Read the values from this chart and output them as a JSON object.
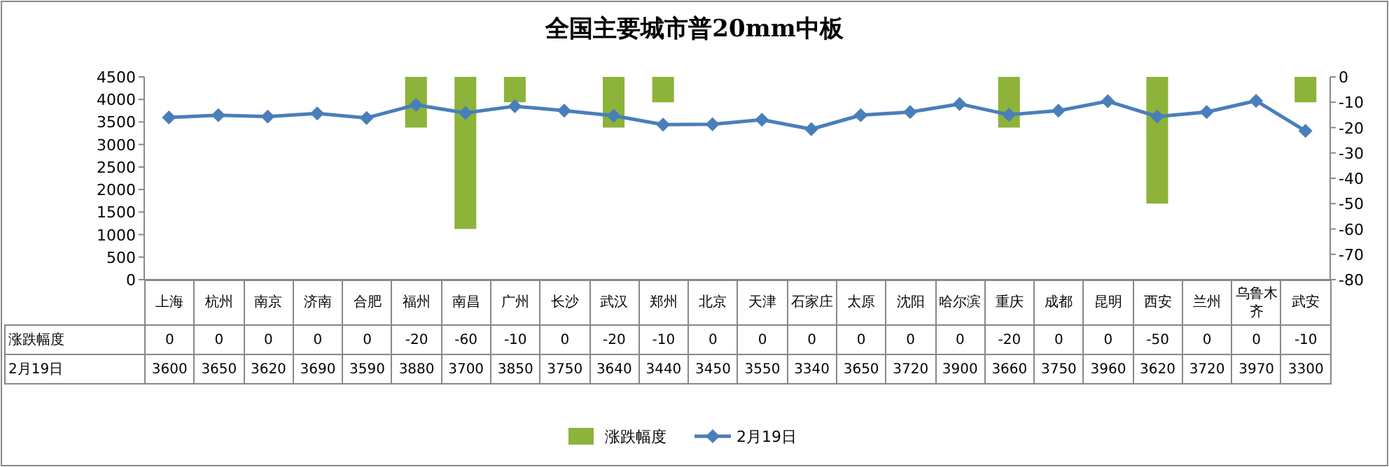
{
  "chart_data": {
    "type": "bar",
    "title": "全国主要城市普20mm中板",
    "categories": [
      "上海",
      "杭州",
      "南京",
      "济南",
      "合肥",
      "福州",
      "南昌",
      "广州",
      "长沙",
      "武汉",
      "郑州",
      "北京",
      "天津",
      "石家庄",
      "太原",
      "沈阳",
      "哈尔滨",
      "重庆",
      "成都",
      "昆明",
      "西安",
      "兰州",
      "乌鲁木齐",
      "武安"
    ],
    "series": [
      {
        "name": "涨跌幅度",
        "axis": "y2",
        "color": "#8db33a",
        "values": [
          0,
          0,
          0,
          0,
          0,
          -20,
          -60,
          -10,
          0,
          -20,
          -10,
          0,
          0,
          0,
          0,
          0,
          0,
          -20,
          0,
          0,
          -50,
          0,
          0,
          -10
        ]
      },
      {
        "name": "2月19日",
        "type": "line",
        "color": "#4a7ebb",
        "values": [
          3600,
          3650,
          3620,
          3690,
          3590,
          3880,
          3700,
          3850,
          3750,
          3640,
          3440,
          3450,
          3550,
          3340,
          3650,
          3720,
          3900,
          3660,
          3750,
          3960,
          3620,
          3720,
          3970,
          3300
        ]
      }
    ],
    "ylim": [
      0,
      4500
    ],
    "yticks": [
      0,
      500,
      1000,
      1500,
      2000,
      2500,
      3000,
      3500,
      4000,
      4500
    ],
    "y2lim": [
      -80,
      0
    ],
    "y2ticks": [
      -80,
      -70,
      -60,
      -50,
      -40,
      -30,
      -20,
      -10,
      0
    ],
    "marker": "diamond",
    "data_labels": true,
    "legend": "bottom"
  }
}
